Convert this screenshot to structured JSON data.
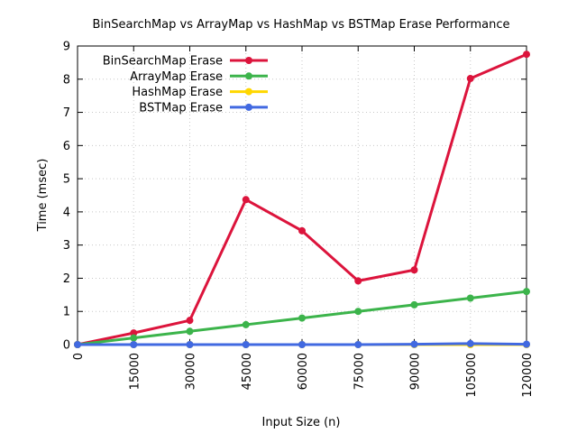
{
  "chart_data": {
    "type": "line",
    "title": "BinSearchMap vs ArrayMap vs HashMap vs BSTMap Erase Performance",
    "xlabel": "Input Size (n)",
    "ylabel": "Time (msec)",
    "xlim": [
      0,
      120000
    ],
    "ylim": [
      0,
      9
    ],
    "x_ticks": [
      "0",
      "15000",
      "30000",
      "45000",
      "60000",
      "75000",
      "90000",
      "105000",
      "120000"
    ],
    "y_ticks": [
      "0",
      "1",
      "2",
      "3",
      "4",
      "5",
      "6",
      "7",
      "8",
      "9"
    ],
    "grid": true,
    "legend_position": "top-left",
    "x": [
      0,
      15000,
      30000,
      45000,
      60000,
      75000,
      90000,
      105000,
      120000
    ],
    "series": [
      {
        "name": "BinSearchMap Erase",
        "color": "#dc143c",
        "values": [
          0.0,
          0.35,
          0.73,
          4.37,
          3.43,
          1.92,
          2.25,
          8.02,
          8.75
        ]
      },
      {
        "name": "ArrayMap Erase",
        "color": "#3cb44b",
        "values": [
          0.0,
          0.2,
          0.4,
          0.6,
          0.8,
          1.0,
          1.2,
          1.4,
          1.6
        ]
      },
      {
        "name": "HashMap Erase",
        "color": "#ffd700",
        "values": [
          0.0,
          0.0,
          0.0,
          0.0,
          0.0,
          0.0,
          0.0,
          0.0,
          0.0
        ]
      },
      {
        "name": "BSTMap Erase",
        "color": "#4169e1",
        "values": [
          0.0,
          0.0,
          0.0,
          0.0,
          0.0,
          0.0,
          0.01,
          0.03,
          0.01
        ]
      }
    ]
  }
}
